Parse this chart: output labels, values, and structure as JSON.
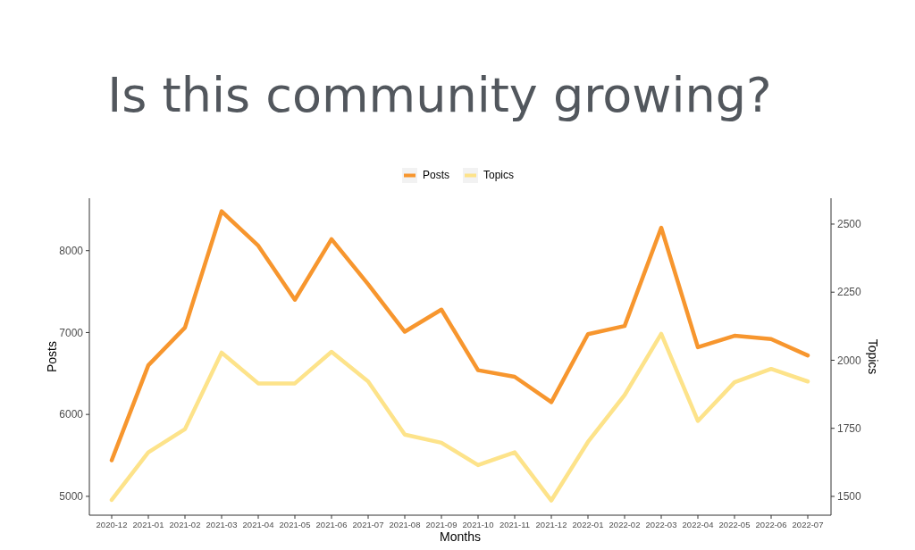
{
  "chart_data": {
    "type": "line",
    "title": "Is this community growing?",
    "xlabel": "Months",
    "ylabel": "Posts",
    "y2label": "Topics",
    "categories": [
      "2020-12",
      "2021-01",
      "2021-02",
      "2021-03",
      "2021-04",
      "2021-05",
      "2021-06",
      "2021-07",
      "2021-08",
      "2021-09",
      "2021-10",
      "2021-11",
      "2021-12",
      "2022-01",
      "2022-02",
      "2022-03",
      "2022-04",
      "2022-05",
      "2022-06",
      "2022-07"
    ],
    "series": [
      {
        "name": "Posts",
        "color": "#f7962e",
        "values": [
          5440,
          6600,
          7060,
          8480,
          8060,
          7400,
          8140,
          7590,
          7010,
          7280,
          6540,
          6460,
          6150,
          6980,
          7080,
          8280,
          6820,
          6960,
          6920,
          6720
        ]
      },
      {
        "name": "Topics",
        "color": "#fde38a",
        "axis": "y2",
        "values": [
          1487,
          1662,
          1747,
          2028,
          1915,
          1915,
          2031,
          1922,
          1727,
          1697,
          1615,
          1662,
          1485,
          1700,
          1872,
          2097,
          1777,
          1919,
          1968,
          1922
        ]
      }
    ],
    "ylim": [
      4770,
      8640
    ],
    "yticks": [
      5000,
      6000,
      7000,
      8000
    ],
    "y2lim": [
      1431,
      2595
    ],
    "y2ticks": [
      1500,
      1750,
      2000,
      2250,
      2500
    ],
    "legend": "top",
    "grid": false,
    "marker": "none",
    "line_style": "solid"
  }
}
